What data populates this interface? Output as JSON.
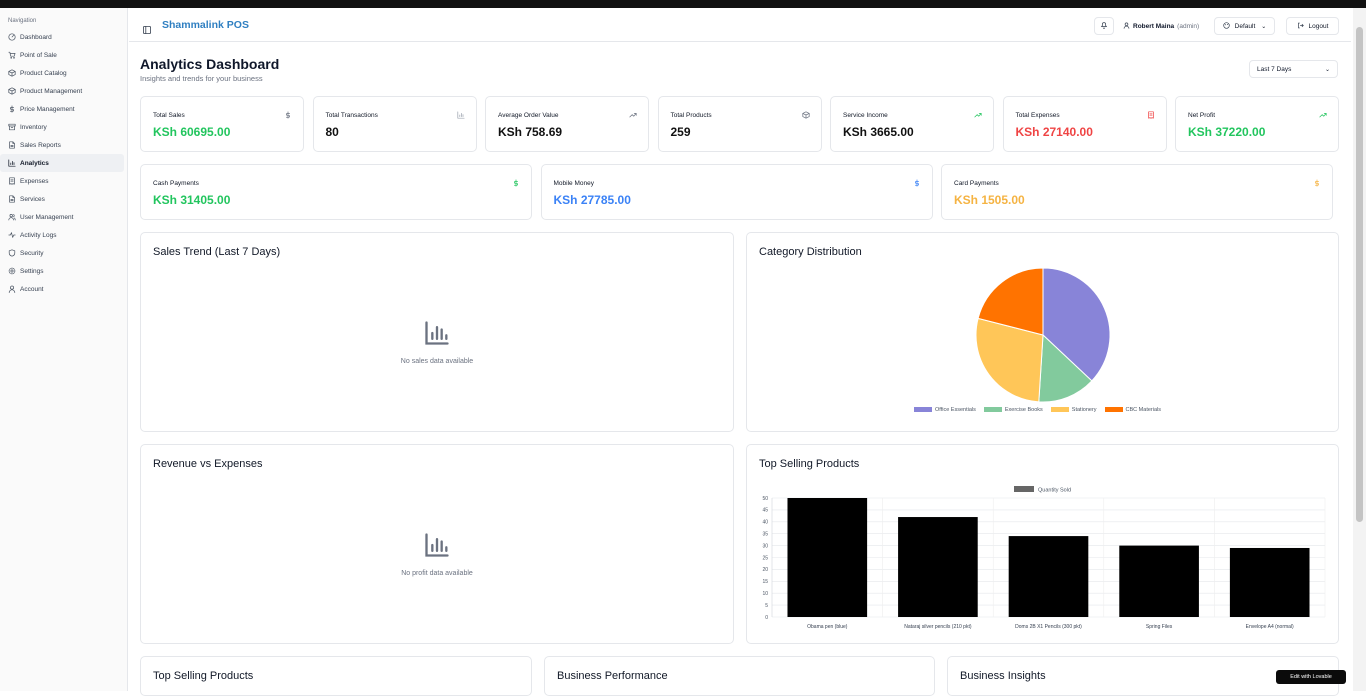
{
  "brand": "Shammalink POS",
  "sidebar": {
    "heading": "Navigation",
    "items": [
      {
        "label": "Dashboard",
        "icon": "dashboard-icon"
      },
      {
        "label": "Point of Sale",
        "icon": "cart-icon"
      },
      {
        "label": "Product Catalog",
        "icon": "box-icon"
      },
      {
        "label": "Product Management",
        "icon": "box-icon"
      },
      {
        "label": "Price Management",
        "icon": "dollar-icon"
      },
      {
        "label": "Inventory",
        "icon": "archive-icon"
      },
      {
        "label": "Sales Reports",
        "icon": "file-icon"
      },
      {
        "label": "Analytics",
        "icon": "bar-chart-icon",
        "active": true
      },
      {
        "label": "Expenses",
        "icon": "receipt-icon"
      },
      {
        "label": "Services",
        "icon": "file-icon"
      },
      {
        "label": "User Management",
        "icon": "users-icon"
      },
      {
        "label": "Activity Logs",
        "icon": "activity-icon"
      },
      {
        "label": "Security",
        "icon": "shield-icon"
      },
      {
        "label": "Settings",
        "icon": "gear-icon"
      },
      {
        "label": "Account",
        "icon": "user-icon"
      }
    ]
  },
  "header": {
    "user_name": "Robert Maina",
    "user_role": "(admin)",
    "theme_label": "Default",
    "logout_label": "Logout"
  },
  "page": {
    "title": "Analytics Dashboard",
    "subtitle": "Insights and trends for your business",
    "range": "Last 7 Days"
  },
  "stats": [
    {
      "label": "Total Sales",
      "value": "KSh 60695.00",
      "icon": "dollar-icon"
    },
    {
      "label": "Total Transactions",
      "value": "80",
      "icon": "bar-chart-icon"
    },
    {
      "label": "Average Order Value",
      "value": "KSh 758.69",
      "icon": "trending-up-icon"
    },
    {
      "label": "Total Products",
      "value": "259",
      "icon": "package-icon"
    },
    {
      "label": "Service Income",
      "value": "KSh 3665.00",
      "icon": "trending-up-icon"
    },
    {
      "label": "Total Expenses",
      "value": "KSh 27140.00",
      "icon": "receipt-icon"
    },
    {
      "label": "Net Profit",
      "value": "KSh 37220.00",
      "icon": "trending-up-icon"
    }
  ],
  "payments": [
    {
      "label": "Cash Payments",
      "value": "KSh 31405.00",
      "icon": "dollar-icon"
    },
    {
      "label": "Mobile Money",
      "value": "KSh 27785.00",
      "icon": "dollar-icon"
    },
    {
      "label": "Card Payments",
      "value": "KSh 1505.00",
      "icon": "dollar-icon"
    }
  ],
  "panels": {
    "sales_trend": {
      "title": "Sales Trend (Last 7 Days)",
      "empty": "No sales data available"
    },
    "category": {
      "title": "Category Distribution"
    },
    "revenue": {
      "title": "Revenue vs Expenses",
      "empty": "No profit data available"
    },
    "top_selling": {
      "title": "Top Selling Products"
    },
    "bottom": [
      "Top Selling Products",
      "Business Performance",
      "Business Insights"
    ]
  },
  "chart_data": [
    {
      "type": "pie",
      "title": "Category Distribution",
      "categories": [
        "Office Essentials",
        "Exercise Books",
        "Stationery",
        "CBC Materials"
      ],
      "values": [
        37,
        14,
        28,
        21
      ],
      "colors": [
        "#8884d8",
        "#82ca9d",
        "#ffc658",
        "#ff7300"
      ],
      "legend": "bottom"
    },
    {
      "type": "bar",
      "title": "Top Selling Products",
      "categories": [
        "Obama pen (blue)",
        "Nataraj silver pencils (210 pkt)",
        "Doms 2B X1 Pencils (300 pkt)",
        "Spring Files",
        "Envelope A4 (normal)"
      ],
      "series": [
        {
          "name": "Quantity Sold",
          "values": [
            50,
            42,
            34,
            30,
            29
          ]
        }
      ],
      "ylim": [
        0,
        50
      ],
      "yticks": [
        0,
        5,
        10,
        15,
        20,
        25,
        30,
        35,
        40,
        45,
        50
      ],
      "legend": "top",
      "grid": true
    }
  ],
  "badge": "Edit with Lovable"
}
